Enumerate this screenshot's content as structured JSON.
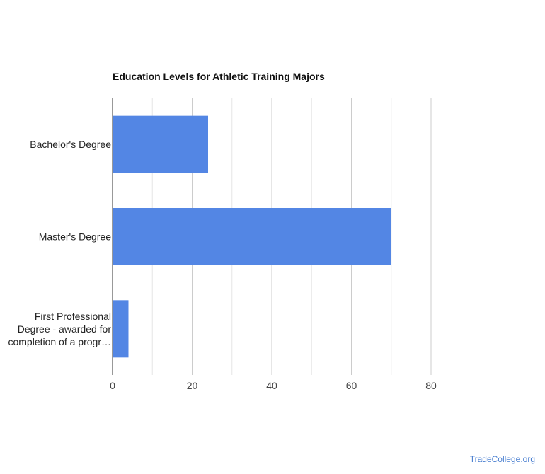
{
  "chart_data": {
    "type": "bar",
    "orientation": "horizontal",
    "title": "Education Levels for Athletic Training Majors",
    "categories": [
      [
        "Bachelor's Degree"
      ],
      [
        "Master's Degree"
      ],
      [
        "First Professional",
        "Degree - awarded for",
        "completion of a progr…"
      ]
    ],
    "values": [
      24,
      70,
      4
    ],
    "xlim": [
      0,
      80
    ],
    "xticks": [
      "0",
      "20",
      "40",
      "60",
      "80"
    ],
    "grid": true,
    "bar_color": "#5386e4"
  },
  "source_text": "TradeCollege.org"
}
